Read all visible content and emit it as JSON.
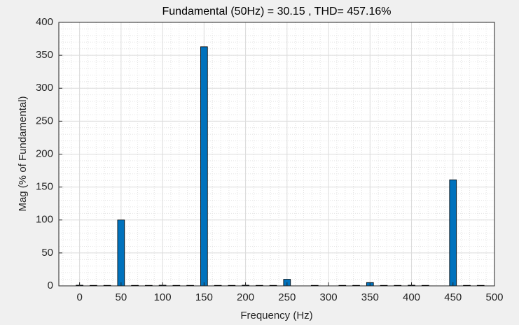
{
  "chart_data": {
    "type": "bar",
    "title": "Fundamental (50Hz) = 30.15 , THD= 457.16%",
    "x_label": "Frequency (Hz)",
    "y_label": "Mag (% of Fundamental)",
    "x": [
      0,
      16.67,
      33.33,
      50,
      66.67,
      83.33,
      100,
      116.67,
      133.33,
      150,
      166.67,
      183.33,
      200,
      216.67,
      233.33,
      250,
      266.67,
      283.33,
      300,
      316.67,
      333.33,
      350,
      366.67,
      383.33,
      400,
      416.67,
      433.33,
      450,
      466.67,
      483.33
    ],
    "values": [
      1,
      0.8,
      0.8,
      100,
      0.8,
      0.8,
      1,
      0.8,
      0.8,
      363,
      0.8,
      0.8,
      1,
      0.8,
      0.8,
      10,
      0,
      0.8,
      0,
      0.8,
      0.8,
      5,
      0.8,
      0.8,
      1,
      0.8,
      0,
      161,
      0.8,
      0.8
    ],
    "color": "#0072bd",
    "xlim": [
      -25,
      500
    ],
    "ylim": [
      0,
      400
    ],
    "xticks": [
      0,
      50,
      100,
      150,
      200,
      250,
      300,
      350,
      400,
      450,
      500
    ],
    "yticks": [
      0,
      50,
      100,
      150,
      200,
      250,
      300,
      350,
      400
    ],
    "grid": true
  }
}
